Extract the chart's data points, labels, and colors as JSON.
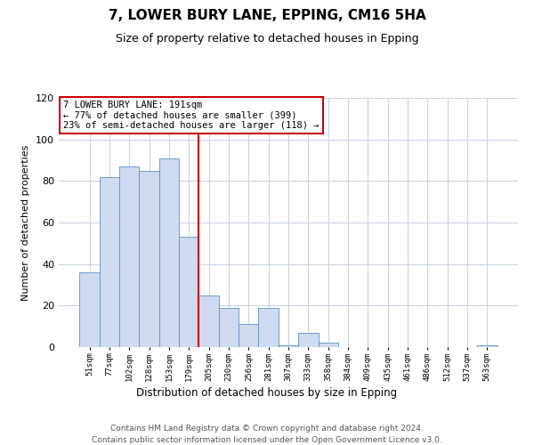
{
  "title": "7, LOWER BURY LANE, EPPING, CM16 5HA",
  "subtitle": "Size of property relative to detached houses in Epping",
  "xlabel": "Distribution of detached houses by size in Epping",
  "ylabel": "Number of detached properties",
  "bar_labels": [
    "51sqm",
    "77sqm",
    "102sqm",
    "128sqm",
    "153sqm",
    "179sqm",
    "205sqm",
    "230sqm",
    "256sqm",
    "281sqm",
    "307sqm",
    "333sqm",
    "358sqm",
    "384sqm",
    "409sqm",
    "435sqm",
    "461sqm",
    "486sqm",
    "512sqm",
    "537sqm",
    "563sqm"
  ],
  "bar_values": [
    36,
    82,
    87,
    85,
    91,
    53,
    25,
    19,
    11,
    19,
    1,
    7,
    2,
    0,
    0,
    0,
    0,
    0,
    0,
    0,
    1
  ],
  "bar_color": "#cddaf0",
  "bar_edge_color": "#5e90c8",
  "vline_color": "#cc0000",
  "annotation_text": "7 LOWER BURY LANE: 191sqm\n← 77% of detached houses are smaller (399)\n23% of semi-detached houses are larger (118) →",
  "annotation_box_color": "#ffffff",
  "annotation_box_edge": "#cc0000",
  "ylim": [
    0,
    120
  ],
  "yticks": [
    0,
    20,
    40,
    60,
    80,
    100,
    120
  ],
  "footer1": "Contains HM Land Registry data © Crown copyright and database right 2024.",
  "footer2": "Contains public sector information licensed under the Open Government Licence v3.0.",
  "background_color": "#ffffff",
  "grid_color": "#c8d4e8"
}
